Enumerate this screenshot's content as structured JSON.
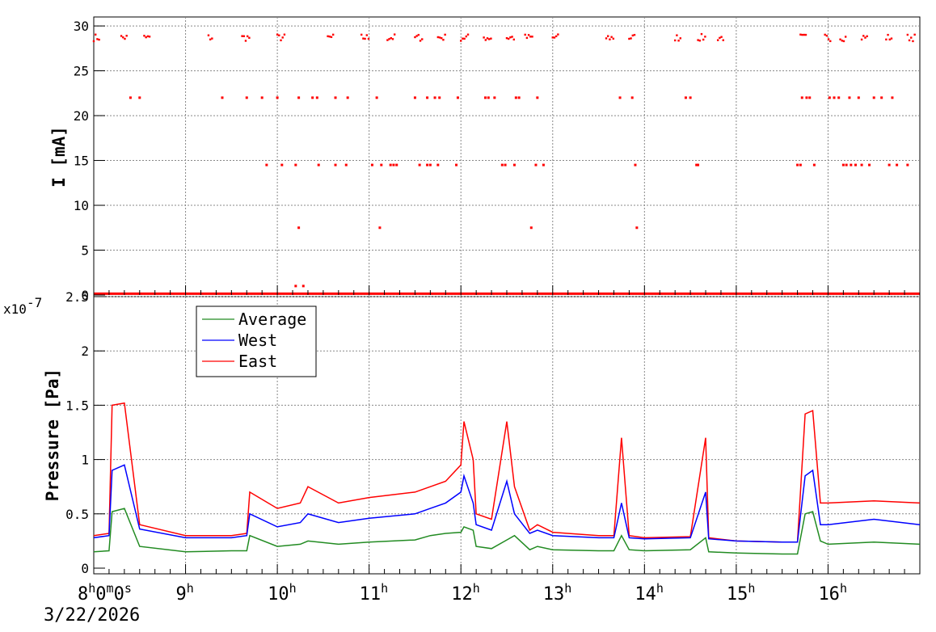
{
  "chart_data": [
    {
      "type": "scatter",
      "ylabel": "I [mA]",
      "ylim": [
        0,
        31
      ],
      "yticks": [
        "0",
        "5",
        "10",
        "15",
        "20",
        "25",
        "30"
      ],
      "xlim": [
        "08:00",
        "17:00"
      ],
      "grid": true,
      "series": [
        {
          "color": "#ff0000",
          "clusters": [
            {
              "y": 28.7,
              "segments": [
                [
                  "08:00",
                  "08:04"
                ],
                [
                  "08:18",
                  "08:22"
                ],
                [
                  "08:33",
                  "08:37"
                ],
                [
                  "09:15",
                  "09:18"
                ],
                [
                  "09:37",
                  "09:42"
                ],
                [
                  "10:00",
                  "10:05"
                ],
                [
                  "10:33",
                  "10:37"
                ],
                [
                  "10:55",
                  "11:00"
                ],
                [
                  "11:12",
                  "11:17"
                ],
                [
                  "11:30",
                  "11:35"
                ],
                [
                  "11:45",
                  "11:50"
                ],
                [
                  "12:00",
                  "12:05"
                ],
                [
                  "12:15",
                  "12:20"
                ],
                [
                  "12:30",
                  "12:35"
                ],
                [
                  "12:42",
                  "12:47"
                ],
                [
                  "13:00",
                  "13:04"
                ],
                [
                  "13:35",
                  "13:40"
                ],
                [
                  "13:50",
                  "13:54"
                ],
                [
                  "14:20",
                  "14:24"
                ],
                [
                  "14:35",
                  "14:40"
                ],
                [
                  "14:48",
                  "14:52"
                ],
                [
                  "15:42",
                  "15:46"
                ],
                [
                  "15:58",
                  "16:02"
                ],
                [
                  "16:08",
                  "16:12"
                ],
                [
                  "16:22",
                  "16:26"
                ],
                [
                  "16:38",
                  "16:42"
                ],
                [
                  "16:52",
                  "16:57"
                ]
              ]
            },
            {
              "y": 22.0,
              "points": [
                "08:24",
                "08:30",
                "09:24",
                "09:40",
                "09:50",
                "10:00",
                "10:14",
                "10:23",
                "10:26",
                "10:38",
                "10:46",
                "11:05",
                "11:30",
                "11:38",
                "11:43",
                "11:46",
                "11:58",
                "12:16",
                "12:18",
                "12:22",
                "12:36",
                "12:38",
                "12:50",
                "13:44",
                "13:52",
                "14:27",
                "14:30",
                "15:43",
                "15:46",
                "15:48",
                "16:01",
                "16:04",
                "16:07",
                "16:14",
                "16:20",
                "16:30",
                "16:35",
                "16:42"
              ]
            },
            {
              "y": 14.5,
              "points": [
                "09:53",
                "10:03",
                "10:12",
                "10:27",
                "10:38",
                "10:45",
                "11:02",
                "11:08",
                "11:14",
                "11:16",
                "11:18",
                "11:33",
                "11:38",
                "11:40",
                "11:45",
                "11:57",
                "12:27",
                "12:29",
                "12:35",
                "12:49",
                "12:54",
                "13:54",
                "14:34",
                "14:35",
                "15:40",
                "15:42",
                "15:51",
                "16:10",
                "16:12",
                "16:15",
                "16:18",
                "16:22",
                "16:27",
                "16:40",
                "16:45",
                "16:52"
              ]
            },
            {
              "y": 7.5,
              "points": [
                "10:14",
                "11:07",
                "12:46",
                "13:55"
              ]
            },
            {
              "y": 1.0,
              "points": [
                "10:12",
                "10:17"
              ]
            },
            {
              "y": 0.1,
              "segments": [
                [
                  "08:00",
                  "17:00"
                ]
              ]
            }
          ]
        }
      ]
    },
    {
      "type": "line",
      "ylabel": "Pressure [Pa]",
      "yunit_label": "x10",
      "yunit_exponent": "-7",
      "ylim": [
        0,
        2.5
      ],
      "yticks": [
        "0",
        "0.5",
        "1",
        "1.5",
        "2",
        "2.5"
      ],
      "xlim": [
        "08:00",
        "17:00"
      ],
      "xticks": [
        {
          "hour": "8",
          "minute": "0",
          "second": "0",
          "date": "3/22/2026"
        },
        {
          "hour": "9"
        },
        {
          "hour": "10"
        },
        {
          "hour": "11"
        },
        {
          "hour": "12"
        },
        {
          "hour": "13"
        },
        {
          "hour": "14"
        },
        {
          "hour": "15"
        },
        {
          "hour": "16"
        }
      ],
      "legend_position": "top-left",
      "grid": true,
      "series": [
        {
          "name": "Average",
          "color": "#228B22",
          "x": [
            "08:00",
            "08:10",
            "08:12",
            "08:20",
            "08:30",
            "09:00",
            "09:30",
            "09:40",
            "09:42",
            "10:00",
            "10:15",
            "10:20",
            "10:40",
            "11:00",
            "11:30",
            "11:40",
            "11:50",
            "12:00",
            "12:02",
            "12:08",
            "12:10",
            "12:20",
            "12:30",
            "12:35",
            "12:45",
            "12:50",
            "13:00",
            "13:30",
            "13:40",
            "13:45",
            "13:50",
            "14:00",
            "14:30",
            "14:40",
            "14:42",
            "15:00",
            "15:30",
            "15:40",
            "15:45",
            "15:50",
            "15:55",
            "16:00",
            "16:30",
            "17:00"
          ],
          "y": [
            0.15,
            0.16,
            0.52,
            0.55,
            0.2,
            0.15,
            0.16,
            0.16,
            0.3,
            0.2,
            0.22,
            0.25,
            0.22,
            0.24,
            0.26,
            0.3,
            0.32,
            0.33,
            0.38,
            0.35,
            0.2,
            0.18,
            0.26,
            0.3,
            0.17,
            0.2,
            0.17,
            0.16,
            0.16,
            0.3,
            0.17,
            0.16,
            0.17,
            0.28,
            0.15,
            0.14,
            0.13,
            0.13,
            0.5,
            0.52,
            0.25,
            0.22,
            0.24,
            0.22
          ]
        },
        {
          "name": "West",
          "color": "#0000ff",
          "x": [
            "08:00",
            "08:10",
            "08:12",
            "08:20",
            "08:30",
            "09:00",
            "09:30",
            "09:40",
            "09:42",
            "10:00",
            "10:15",
            "10:20",
            "10:40",
            "11:00",
            "11:30",
            "11:40",
            "11:50",
            "12:00",
            "12:02",
            "12:08",
            "12:10",
            "12:20",
            "12:30",
            "12:35",
            "12:45",
            "12:50",
            "13:00",
            "13:30",
            "13:40",
            "13:45",
            "13:50",
            "14:00",
            "14:30",
            "14:40",
            "14:42",
            "15:00",
            "15:30",
            "15:40",
            "15:45",
            "15:50",
            "15:55",
            "16:00",
            "16:30",
            "17:00"
          ],
          "y": [
            0.28,
            0.3,
            0.9,
            0.95,
            0.36,
            0.28,
            0.28,
            0.3,
            0.5,
            0.38,
            0.42,
            0.5,
            0.42,
            0.46,
            0.5,
            0.55,
            0.6,
            0.7,
            0.85,
            0.6,
            0.4,
            0.35,
            0.8,
            0.5,
            0.32,
            0.35,
            0.3,
            0.28,
            0.28,
            0.6,
            0.28,
            0.27,
            0.28,
            0.7,
            0.27,
            0.25,
            0.24,
            0.24,
            0.85,
            0.9,
            0.4,
            0.4,
            0.45,
            0.4
          ]
        },
        {
          "name": "East",
          "color": "#ff0000",
          "x": [
            "08:00",
            "08:10",
            "08:12",
            "08:20",
            "08:30",
            "09:00",
            "09:30",
            "09:40",
            "09:42",
            "10:00",
            "10:15",
            "10:20",
            "10:40",
            "11:00",
            "11:30",
            "11:40",
            "11:50",
            "12:00",
            "12:02",
            "12:08",
            "12:10",
            "12:20",
            "12:30",
            "12:35",
            "12:45",
            "12:50",
            "13:00",
            "13:30",
            "13:40",
            "13:45",
            "13:50",
            "14:00",
            "14:30",
            "14:40",
            "14:42",
            "15:00",
            "15:30",
            "15:40",
            "15:45",
            "15:50",
            "15:55",
            "16:00",
            "16:30",
            "17:00"
          ],
          "y": [
            0.3,
            0.32,
            1.5,
            1.52,
            0.4,
            0.3,
            0.3,
            0.32,
            0.7,
            0.55,
            0.6,
            0.75,
            0.6,
            0.65,
            0.7,
            0.75,
            0.8,
            0.95,
            1.35,
            1.0,
            0.5,
            0.45,
            1.35,
            0.75,
            0.35,
            0.4,
            0.33,
            0.3,
            0.3,
            1.2,
            0.3,
            0.28,
            0.29,
            1.2,
            0.28,
            0.25,
            0.24,
            0.24,
            1.42,
            1.45,
            0.6,
            0.6,
            0.62,
            0.6
          ]
        }
      ]
    }
  ]
}
